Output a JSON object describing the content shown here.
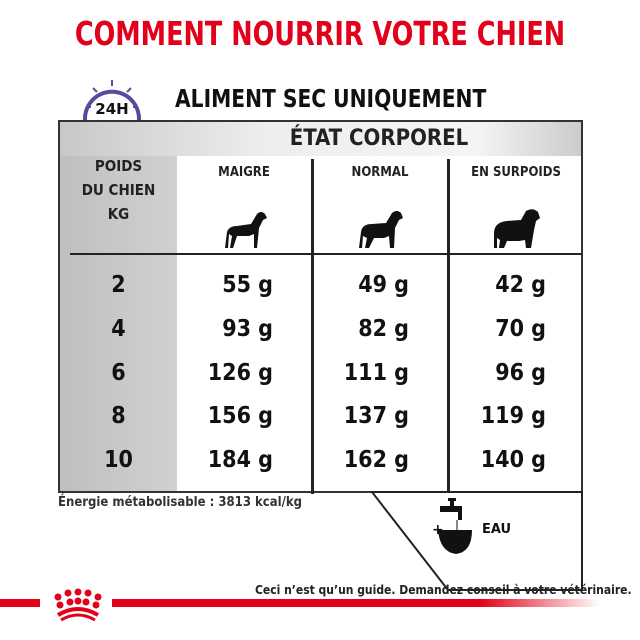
{
  "title": "COMMENT NOURRIR VOTRE CHIEN",
  "subtitle": "ALIMENT SEC UNIQUEMENT",
  "clock_label": "24H",
  "table": {
    "group_header": "ÉTAT CORPOREL",
    "row_header": [
      "POIDS",
      "DU CHIEN",
      "KG"
    ],
    "columns": [
      "MAIGRE",
      "NORMAL",
      "EN SURPOIDS"
    ],
    "rows": [
      {
        "kg": "2",
        "values": [
          "55 g",
          "49 g",
          "42 g"
        ]
      },
      {
        "kg": "4",
        "values": [
          "93 g",
          "82 g",
          "70 g"
        ]
      },
      {
        "kg": "6",
        "values": [
          "126 g",
          "111 g",
          "96 g"
        ]
      },
      {
        "kg": "8",
        "values": [
          "156 g",
          "137 g",
          "119 g"
        ]
      },
      {
        "kg": "10",
        "values": [
          "184 g",
          "162 g",
          "140 g"
        ]
      }
    ]
  },
  "energy": "Énergie métabolisable : 3813 kcal/kg",
  "water": {
    "plus": "+",
    "label": "EAU"
  },
  "footer": "Ceci n’est qu’un guide. Demandez conseil à votre vétérinaire.",
  "colors": {
    "brand_red": "#e2001a",
    "clock_purple": "#5b4a9b"
  }
}
